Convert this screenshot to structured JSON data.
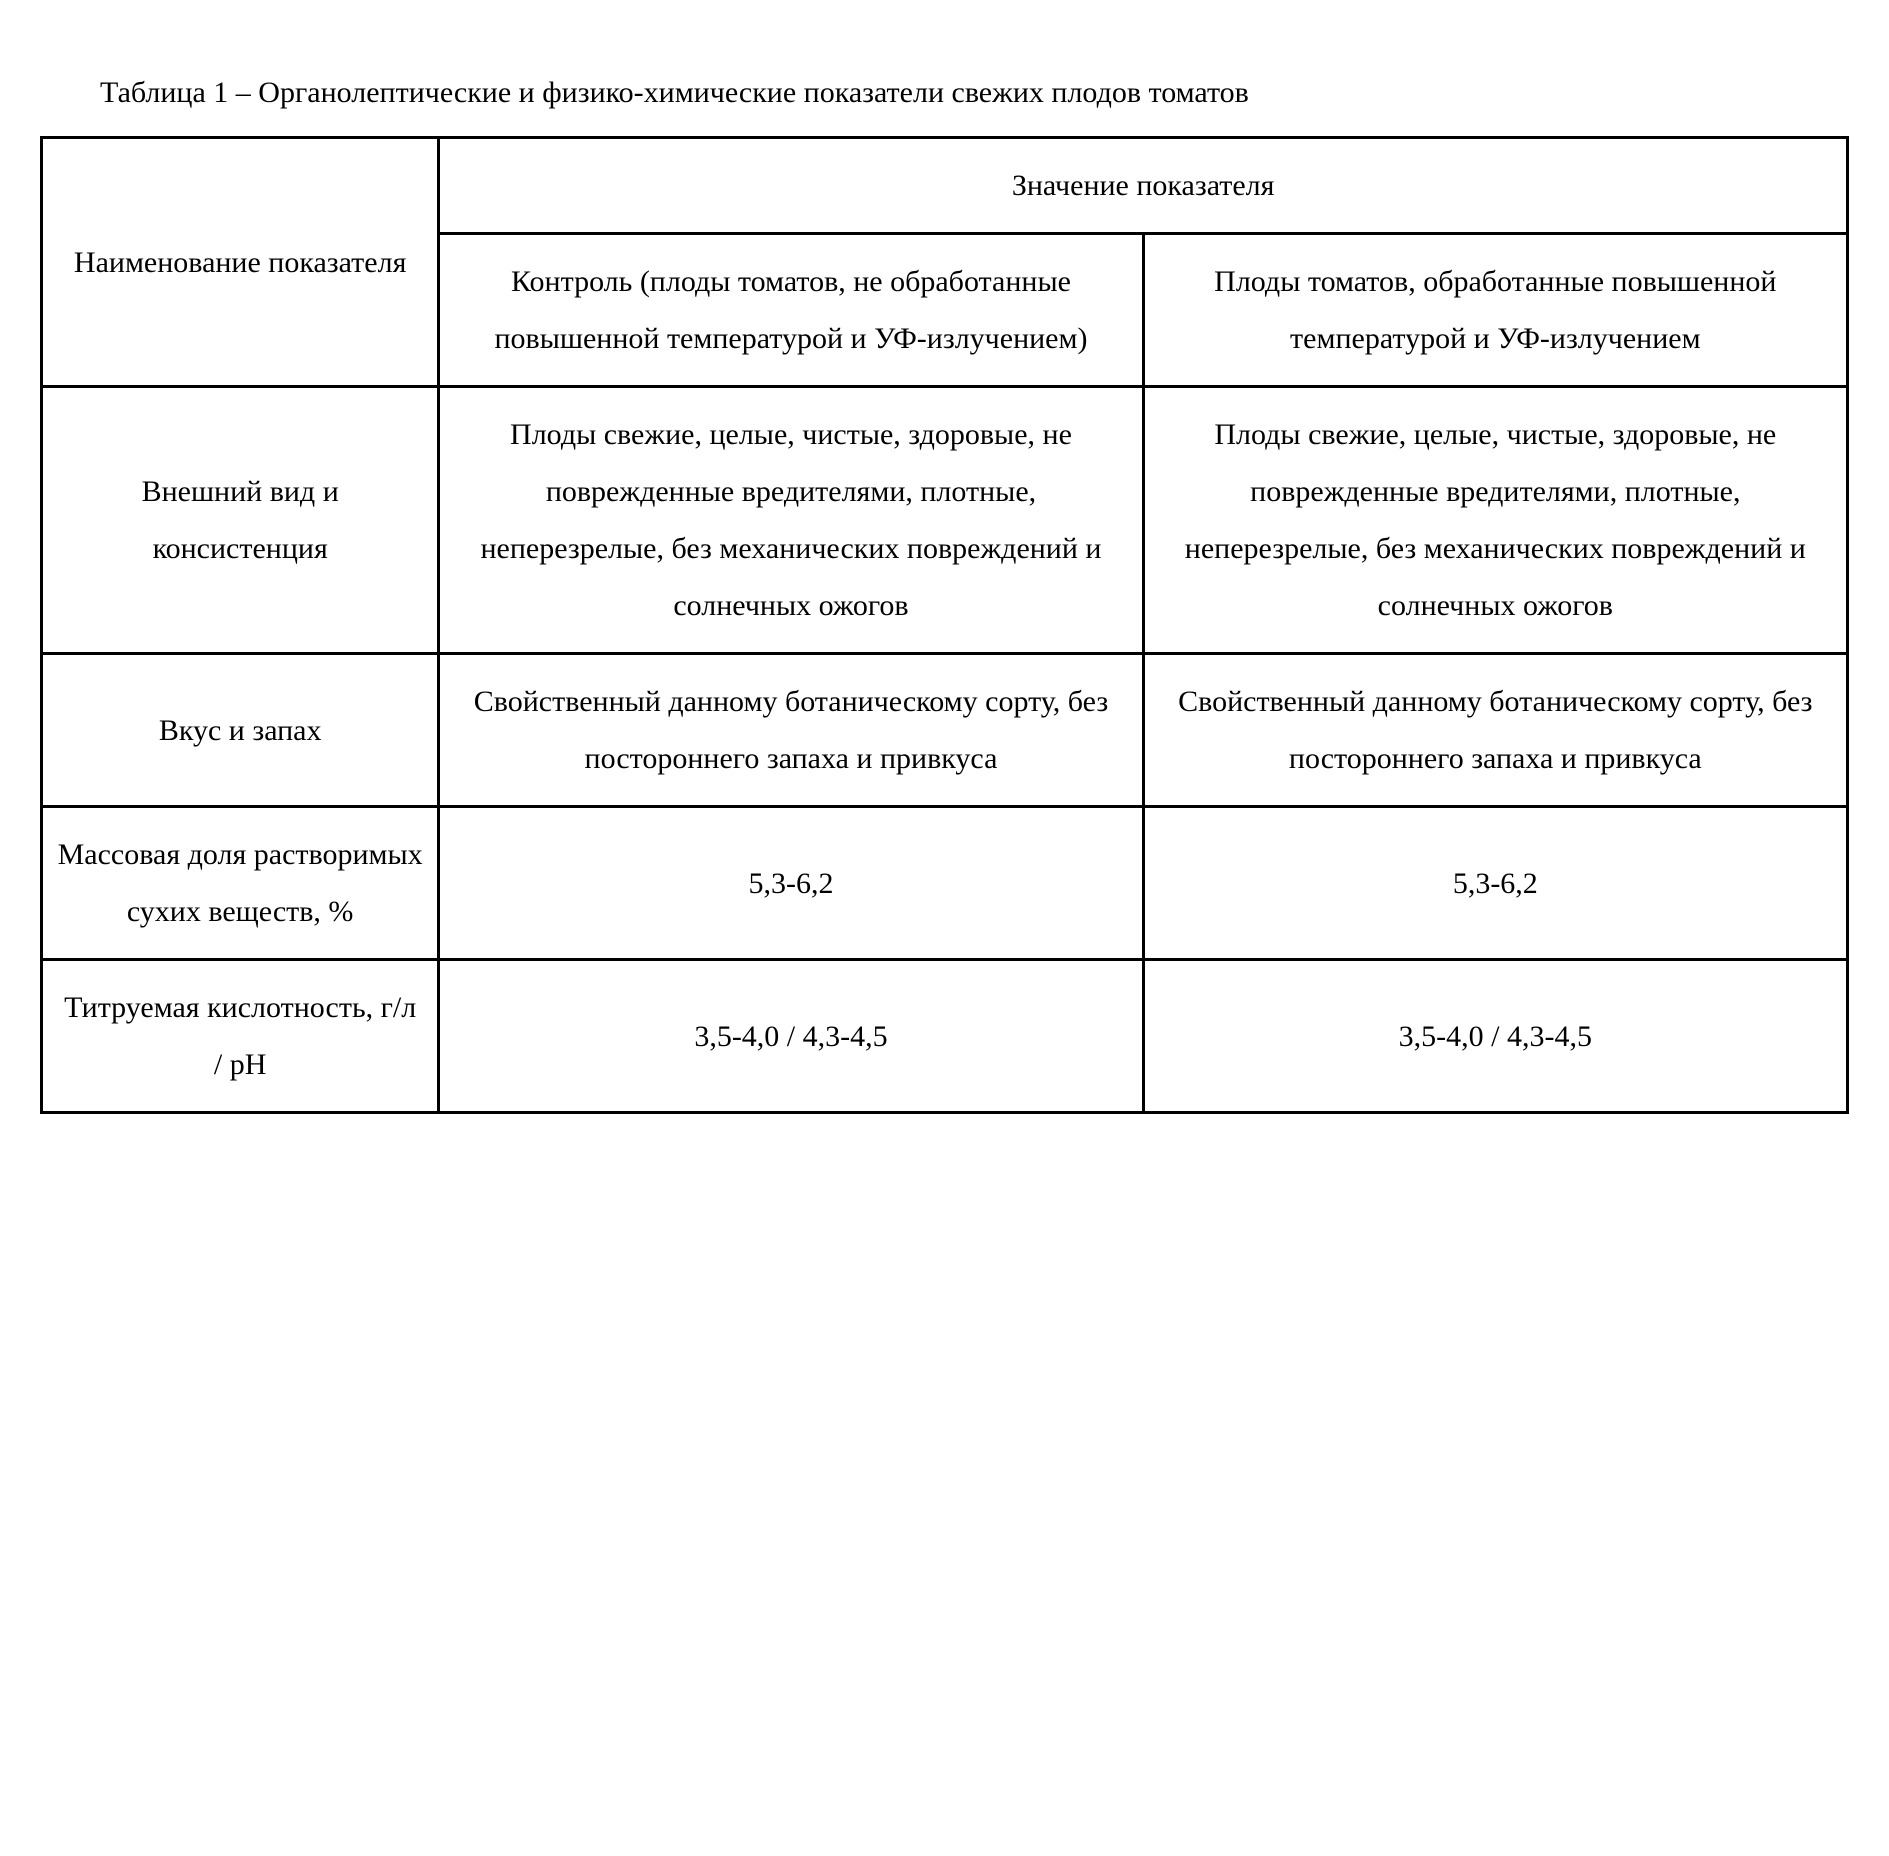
{
  "caption": "Таблица 1 – Органолептические и физико-химические показатели свежих плодов томатов",
  "table": {
    "type": "table",
    "border_color": "#000000",
    "background_color": "#ffffff",
    "font_family": "Times New Roman",
    "font_size_pt": 22,
    "text_color": "#000000",
    "column_widths_pct": [
      22,
      39,
      39
    ],
    "header": {
      "row_label": "Наименование показателя",
      "group_label": "Значение показателя",
      "subheaders": [
        "Контроль (плоды томатов, не обработанные повышенной температурой и УФ-излучением)",
        "Плоды томатов, обработанные повышенной температурой и УФ-излучением"
      ]
    },
    "rows": [
      {
        "label": "Внешний вид и консистенция",
        "control": "Плоды свежие, целые, чистые, здоровые, не поврежденные вредителями, плотные, неперезрелые, без механических повреждений и солнечных ожогов",
        "treated": "Плоды свежие, целые, чистые, здоровые, не поврежденные вредителями, плотные, неперезрелые, без механических повреждений и солнечных ожогов"
      },
      {
        "label": "Вкус и запах",
        "control": "Свойственный данному ботаническому сорту, без постороннего запаха и привкуса",
        "treated": "Свойственный данному ботаническому сорту, без постороннего запаха и привкуса"
      },
      {
        "label": "Массовая доля растворимых сухих веществ, %",
        "control": "5,3-6,2",
        "treated": "5,3-6,2"
      },
      {
        "label": "Титруемая кислотность, г/л / pH",
        "control": "3,5-4,0 / 4,3-4,5",
        "treated": "3,5-4,0 / 4,3-4,5"
      }
    ]
  }
}
